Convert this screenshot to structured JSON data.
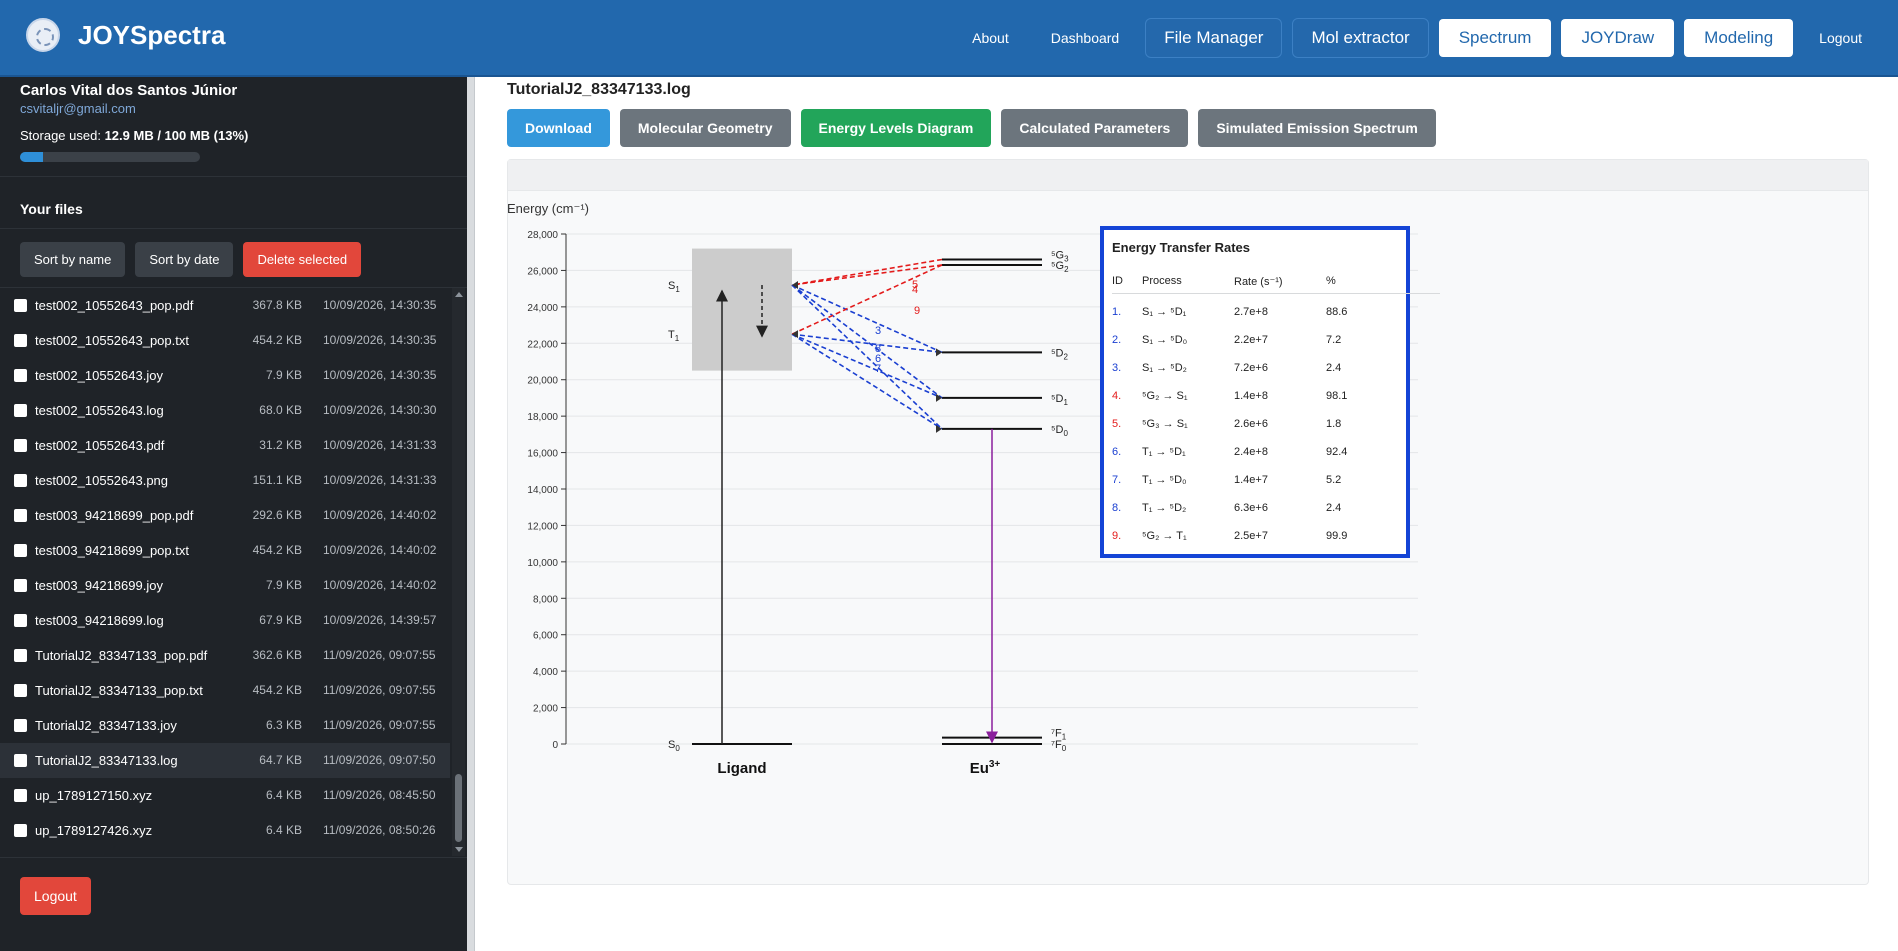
{
  "header": {
    "brand": "JOYSpectra",
    "nav": [
      {
        "label": "About",
        "style": "link",
        "name": "nav-about"
      },
      {
        "label": "Dashboard",
        "style": "link",
        "name": "nav-dashboard"
      },
      {
        "label": "File Manager",
        "style": "dark",
        "name": "nav-file-manager"
      },
      {
        "label": "Mol extractor",
        "style": "dark",
        "name": "nav-mol-extractor"
      },
      {
        "label": "Spectrum",
        "style": "white",
        "name": "nav-spectrum"
      },
      {
        "label": "JOYDraw",
        "style": "white",
        "name": "nav-joydraw"
      },
      {
        "label": "Modeling",
        "style": "white",
        "name": "nav-modeling"
      },
      {
        "label": "Logout",
        "style": "link",
        "name": "nav-logout"
      }
    ]
  },
  "sidebar": {
    "user_name": "Carlos Vital dos Santos Júnior",
    "user_email": "csvitaljr@gmail.com",
    "storage_label": "Storage used:",
    "storage_value": "12.9 MB / 100 MB (13%)",
    "storage_fraction": 0.13,
    "files_title": "Your files",
    "sort_name_label": "Sort by name",
    "sort_date_label": "Sort by date",
    "delete_label": "Delete selected",
    "logout_label": "Logout",
    "files": [
      {
        "name": "test002_10552643_pop.pdf",
        "size": "367.8 KB",
        "date": "10/09/2026, 14:30:35"
      },
      {
        "name": "test002_10552643_pop.txt",
        "size": "454.2 KB",
        "date": "10/09/2026, 14:30:35"
      },
      {
        "name": "test002_10552643.joy",
        "size": "7.9 KB",
        "date": "10/09/2026, 14:30:35"
      },
      {
        "name": "test002_10552643.log",
        "size": "68.0 KB",
        "date": "10/09/2026, 14:30:30"
      },
      {
        "name": "test002_10552643.pdf",
        "size": "31.2 KB",
        "date": "10/09/2026, 14:31:33"
      },
      {
        "name": "test002_10552643.png",
        "size": "151.1 KB",
        "date": "10/09/2026, 14:31:33"
      },
      {
        "name": "test003_94218699_pop.pdf",
        "size": "292.6 KB",
        "date": "10/09/2026, 14:40:02"
      },
      {
        "name": "test003_94218699_pop.txt",
        "size": "454.2 KB",
        "date": "10/09/2026, 14:40:02"
      },
      {
        "name": "test003_94218699.joy",
        "size": "7.9 KB",
        "date": "10/09/2026, 14:40:02"
      },
      {
        "name": "test003_94218699.log",
        "size": "67.9 KB",
        "date": "10/09/2026, 14:39:57"
      },
      {
        "name": "TutorialJ2_83347133_pop.pdf",
        "size": "362.6 KB",
        "date": "11/09/2026, 09:07:55"
      },
      {
        "name": "TutorialJ2_83347133_pop.txt",
        "size": "454.2 KB",
        "date": "11/09/2026, 09:07:55"
      },
      {
        "name": "TutorialJ2_83347133.joy",
        "size": "6.3 KB",
        "date": "11/09/2026, 09:07:55"
      },
      {
        "name": "TutorialJ2_83347133.log",
        "size": "64.7 KB",
        "date": "11/09/2026, 09:07:50",
        "active": true
      },
      {
        "name": "up_1789127150.xyz",
        "size": "6.4 KB",
        "date": "11/09/2026, 08:45:50"
      },
      {
        "name": "up_1789127426.xyz",
        "size": "6.4 KB",
        "date": "11/09/2026, 08:50:26"
      }
    ]
  },
  "main": {
    "file_title": "TutorialJ2_83347133.log",
    "tabs": [
      {
        "label": "Download",
        "color": "blue"
      },
      {
        "label": "Molecular Geometry",
        "color": "gray"
      },
      {
        "label": "Energy Levels Diagram",
        "color": "green"
      },
      {
        "label": "Calculated Parameters",
        "color": "gray"
      },
      {
        "label": "Simulated Emission Spectrum",
        "color": "gray"
      }
    ]
  },
  "chart_data": {
    "type": "energy-level-diagram",
    "ylabel": "Energy (cm⁻¹)",
    "ylim": [
      0,
      28000
    ],
    "yticks": [
      0,
      2000,
      4000,
      6000,
      8000,
      10000,
      12000,
      14000,
      16000,
      18000,
      20000,
      22000,
      24000,
      26000,
      28000
    ],
    "ytick_labels": [
      "0",
      "2,000",
      "4,000",
      "6,000",
      "8,000",
      "10,000",
      "12,000",
      "14,000",
      "16,000",
      "18,000",
      "20,000",
      "22,000",
      "24,000",
      "26,000",
      "28,000"
    ],
    "columns": [
      {
        "label": "Ligand",
        "key": "ligand"
      },
      {
        "label": "Eu",
        "superscript": "3+",
        "key": "eu"
      }
    ],
    "ligand_levels": [
      {
        "label": "S",
        "sub": "0",
        "energy": 0
      },
      {
        "label": "S",
        "sub": "1",
        "energy": 25200
      },
      {
        "label": "T",
        "sub": "1",
        "energy": 22500
      }
    ],
    "ligand_band": [
      20500,
      27200
    ],
    "eu_levels": [
      {
        "label": "⁵G",
        "sub": "3",
        "energy": 26600
      },
      {
        "label": "⁵G",
        "sub": "2",
        "energy": 26300
      },
      {
        "label": "⁵D",
        "sub": "2",
        "energy": 21500
      },
      {
        "label": "⁵D",
        "sub": "1",
        "energy": 19000
      },
      {
        "label": "⁵D",
        "sub": "0",
        "energy": 17300
      },
      {
        "label": "⁷F",
        "sub": "1",
        "energy": 350
      },
      {
        "label": "⁷F",
        "sub": "0",
        "energy": 0
      }
    ],
    "legend_title": "Energy Transfer Rates",
    "legend_headers": [
      "ID",
      "Process",
      "Rate (s⁻¹)",
      "%"
    ],
    "transfers": [
      {
        "id": "1.",
        "from": "S₁",
        "to": "⁵D₁",
        "rate": "2.7e+8",
        "pct": "88.6",
        "color": "#1a3fd1"
      },
      {
        "id": "2.",
        "from": "S₁",
        "to": "⁵D₀",
        "rate": "2.2e+7",
        "pct": "7.2",
        "color": "#1a3fd1"
      },
      {
        "id": "3.",
        "from": "S₁",
        "to": "⁵D₂",
        "rate": "7.2e+6",
        "pct": "2.4",
        "color": "#1a3fd1"
      },
      {
        "id": "4.",
        "from": "⁵G₂",
        "to": "S₁",
        "rate": "1.4e+8",
        "pct": "98.1",
        "color": "#e31b1b"
      },
      {
        "id": "5.",
        "from": "⁵G₃",
        "to": "S₁",
        "rate": "2.6e+6",
        "pct": "1.8",
        "color": "#e31b1b"
      },
      {
        "id": "6.",
        "from": "T₁",
        "to": "⁵D₁",
        "rate": "2.4e+8",
        "pct": "92.4",
        "color": "#1a3fd1"
      },
      {
        "id": "7.",
        "from": "T₁",
        "to": "⁵D₀",
        "rate": "1.4e+7",
        "pct": "5.2",
        "color": "#1a3fd1"
      },
      {
        "id": "8.",
        "from": "T₁",
        "to": "⁵D₂",
        "rate": "6.3e+6",
        "pct": "2.4",
        "color": "#1a3fd1"
      },
      {
        "id": "9.",
        "from": "⁵G₂",
        "to": "T₁",
        "rate": "2.5e+7",
        "pct": "99.9",
        "color": "#e31b1b"
      }
    ],
    "arrow_labels": [
      "5",
      "4",
      "9",
      "3",
      "8",
      "6",
      "7"
    ]
  },
  "colors": {
    "header": "#2268ad",
    "sidebar": "#1f2328",
    "transfer_blue": "#1a3fd1",
    "transfer_red": "#e31b1b",
    "emission": "#8a1f9c",
    "legend_border": "#1444d6"
  }
}
